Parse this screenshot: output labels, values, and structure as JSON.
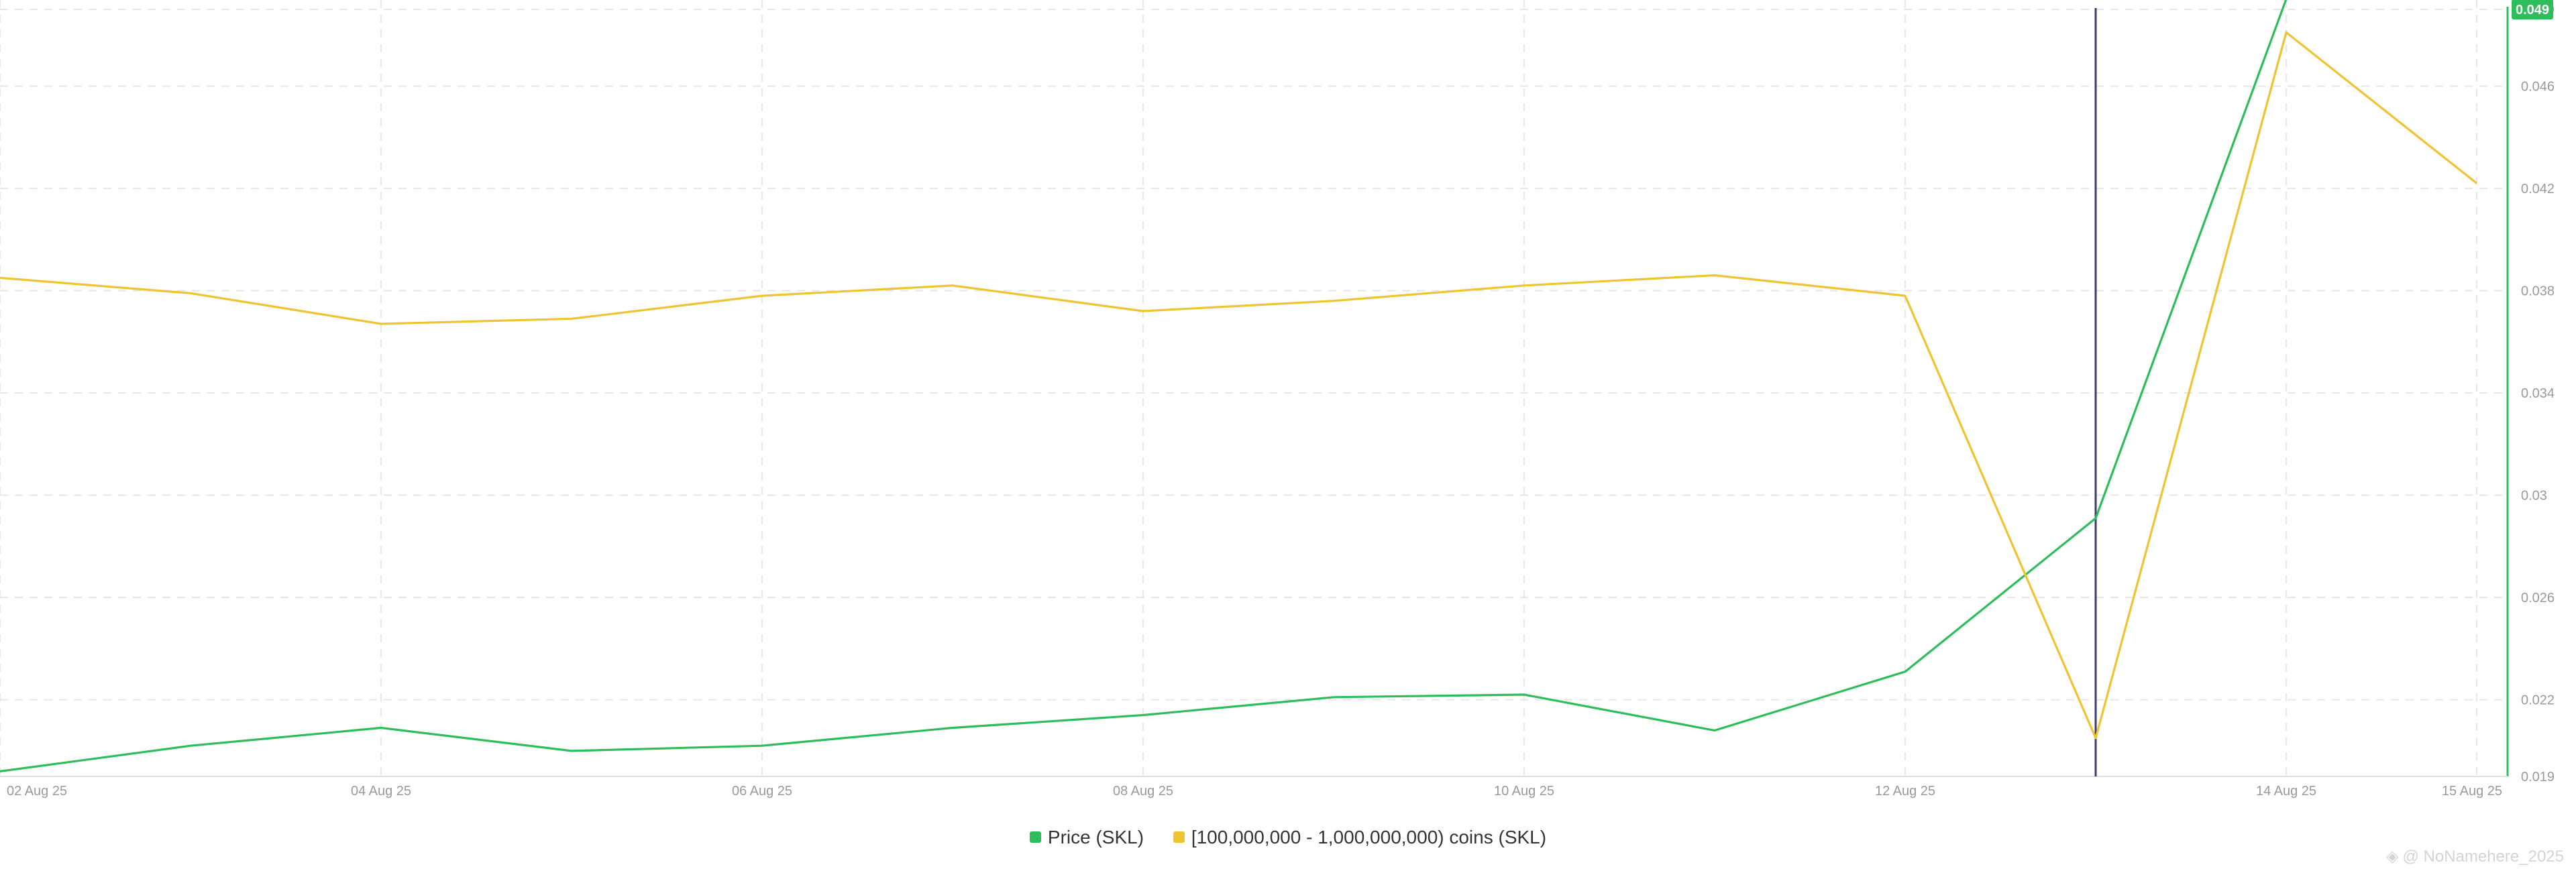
{
  "chart_data": {
    "type": "line",
    "x": [
      "2025-08-02",
      "2025-08-03",
      "2025-08-04",
      "2025-08-05",
      "2025-08-06",
      "2025-08-07",
      "2025-08-08",
      "2025-08-09",
      "2025-08-10",
      "2025-08-11",
      "2025-08-12",
      "2025-08-13",
      "2025-08-14",
      "2025-08-15"
    ],
    "x_tick_labels": [
      "02 Aug 25",
      "04 Aug 25",
      "06 Aug 25",
      "08 Aug 25",
      "10 Aug 25",
      "12 Aug 25",
      "14 Aug 25",
      "15 Aug 25"
    ],
    "x_tick_dates": [
      "2025-08-02",
      "2025-08-04",
      "2025-08-06",
      "2025-08-08",
      "2025-08-10",
      "2025-08-12",
      "2025-08-14",
      "2025-08-15"
    ],
    "y_ticks": [
      "0.019",
      "0.022",
      "0.026",
      "0.03",
      "0.034",
      "0.038",
      "0.042",
      "0.046",
      "0.049"
    ],
    "ylim": [
      0.019,
      0.049
    ],
    "series": [
      {
        "name": "Price (SKL)",
        "color": "#2dbd5b",
        "x": [
          "2025-08-02",
          "2025-08-03",
          "2025-08-04",
          "2025-08-05",
          "2025-08-06",
          "2025-08-07",
          "2025-08-08",
          "2025-08-09",
          "2025-08-10",
          "2025-08-11",
          "2025-08-12",
          "2025-08-13",
          "2025-08-14"
        ],
        "values": [
          0.0192,
          0.0202,
          0.0209,
          0.02,
          0.0202,
          0.0209,
          0.0214,
          0.0221,
          0.0222,
          0.0208,
          0.0231,
          0.0291,
          0.0494
        ]
      },
      {
        "name": "[100,000,000 - 1,000,000,000) coins (SKL)",
        "color": "#f0c330",
        "x": [
          "2025-08-02",
          "2025-08-03",
          "2025-08-04",
          "2025-08-05",
          "2025-08-06",
          "2025-08-07",
          "2025-08-08",
          "2025-08-09",
          "2025-08-10",
          "2025-08-11",
          "2025-08-12",
          "2025-08-13",
          "2025-08-14",
          "2025-08-15"
        ],
        "values": [
          0.0385,
          0.0379,
          0.0367,
          0.0369,
          0.0378,
          0.0382,
          0.0372,
          0.0376,
          0.0382,
          0.0386,
          0.0378,
          0.0205,
          0.0481,
          0.0422
        ]
      }
    ],
    "crosshair_x": "2025-08-13",
    "current_value_label": "0.049",
    "grid": true,
    "legend_position": "bottom-center"
  },
  "legend": {
    "items": [
      {
        "label": "Price (SKL)",
        "color": "#2dbd5b"
      },
      {
        "label": "[100,000,000 - 1,000,000,000) coins (SKL)",
        "color": "#f0c330"
      }
    ]
  },
  "watermark": "@ NoNamehere_2025"
}
